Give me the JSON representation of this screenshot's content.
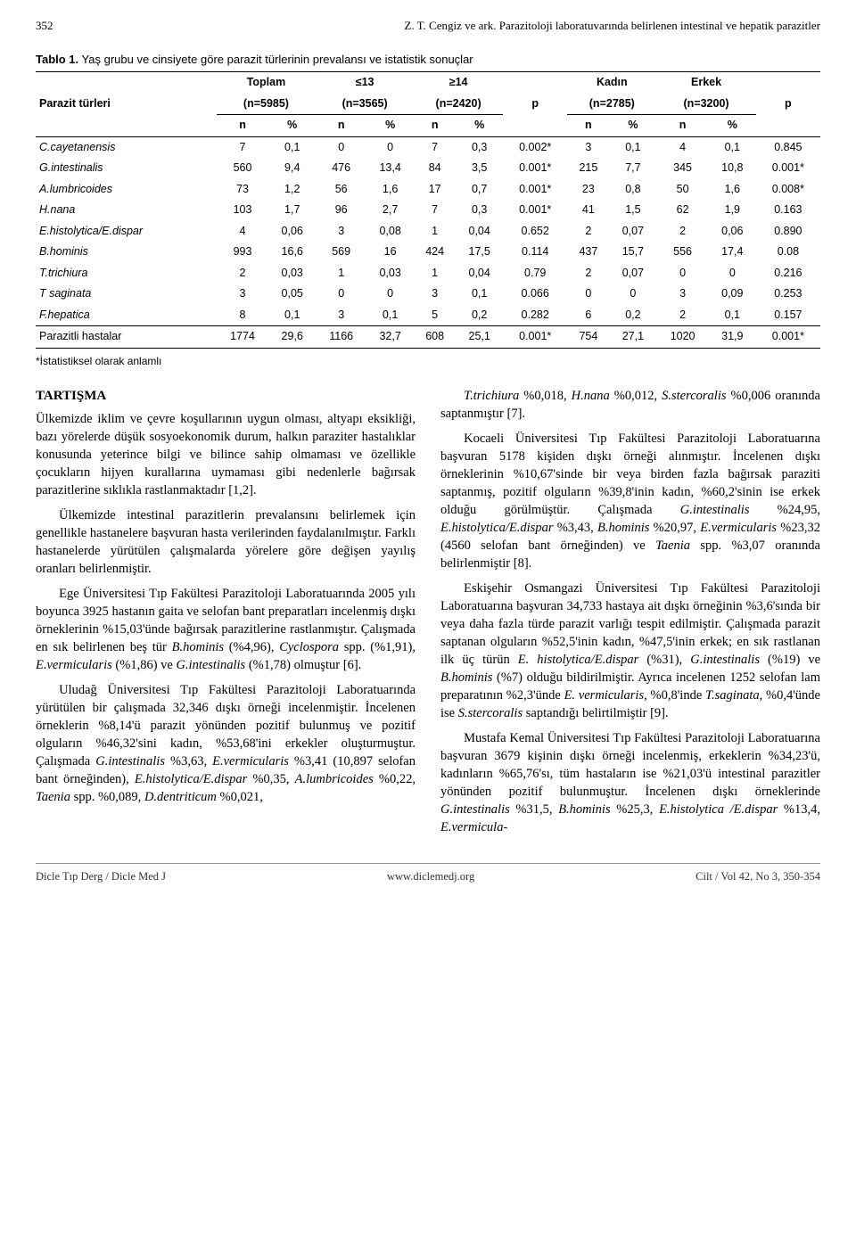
{
  "header": {
    "page_number": "352",
    "running_head": "Z. T. Cengiz ve ark. Parazitoloji laboratuvarında belirlenen intestinal ve hepatik parazitler"
  },
  "table": {
    "caption_label": "Tablo 1.",
    "caption_text": "Yaş grubu ve cinsiyete göre parazit türlerinin prevalansı ve istatistik sonuçlar",
    "header_row1": {
      "col0": "Parazit türleri",
      "groups": [
        {
          "label": "Toplam",
          "n": "(n=5985)"
        },
        {
          "label": "≤13",
          "n": "(n=3565)"
        },
        {
          "label": "≥14",
          "n": "(n=2420)"
        }
      ],
      "p1": "p",
      "groups2": [
        {
          "label": "Kadın",
          "n": "(n=2785)"
        },
        {
          "label": "Erkek",
          "n": "(n=3200)"
        }
      ],
      "p2": "p"
    },
    "header_row2": [
      "n",
      "%",
      "n",
      "%",
      "n",
      "%",
      "",
      "n",
      "%",
      "n",
      "%",
      ""
    ],
    "rows": [
      {
        "name": "C.cayetanensis",
        "italic": true,
        "vals": [
          "7",
          "0,1",
          "0",
          "0",
          "7",
          "0,3",
          "0.002*",
          "3",
          "0,1",
          "4",
          "0,1",
          "0.845"
        ]
      },
      {
        "name": "G.intestinalis",
        "italic": true,
        "vals": [
          "560",
          "9,4",
          "476",
          "13,4",
          "84",
          "3,5",
          "0.001*",
          "215",
          "7,7",
          "345",
          "10,8",
          "0.001*"
        ]
      },
      {
        "name": "A.lumbricoides",
        "italic": true,
        "vals": [
          "73",
          "1,2",
          "56",
          "1,6",
          "17",
          "0,7",
          "0.001*",
          "23",
          "0,8",
          "50",
          "1,6",
          "0.008*"
        ]
      },
      {
        "name": "H.nana",
        "italic": true,
        "vals": [
          "103",
          "1,7",
          "96",
          "2,7",
          "7",
          "0,3",
          "0.001*",
          "41",
          "1,5",
          "62",
          "1,9",
          "0.163"
        ]
      },
      {
        "name": "E.histolytica/E.dispar",
        "italic": true,
        "vals": [
          "4",
          "0,06",
          "3",
          "0,08",
          "1",
          "0,04",
          "0.652",
          "2",
          "0,07",
          "2",
          "0,06",
          "0.890"
        ]
      },
      {
        "name": "B.hominis",
        "italic": true,
        "vals": [
          "993",
          "16,6",
          "569",
          "16",
          "424",
          "17,5",
          "0.114",
          "437",
          "15,7",
          "556",
          "17,4",
          "0.08"
        ]
      },
      {
        "name": "T.trichiura",
        "italic": true,
        "vals": [
          "2",
          "0,03",
          "1",
          "0,03",
          "1",
          "0,04",
          "0.79",
          "2",
          "0,07",
          "0",
          "0",
          "0.216"
        ]
      },
      {
        "name": "T saginata",
        "italic": true,
        "vals": [
          "3",
          "0,05",
          "0",
          "0",
          "3",
          "0,1",
          "0.066",
          "0",
          "0",
          "3",
          "0,09",
          "0.253"
        ]
      },
      {
        "name": "F.hepatica",
        "italic": true,
        "vals": [
          "8",
          "0,1",
          "3",
          "0,1",
          "5",
          "0,2",
          "0.282",
          "6",
          "0,2",
          "2",
          "0,1",
          "0.157"
        ]
      },
      {
        "name": "Parazitli hastalar",
        "italic": false,
        "vals": [
          "1774",
          "29,6",
          "1166",
          "32,7",
          "608",
          "25,1",
          "0.001*",
          "754",
          "27,1",
          "1020",
          "31,9",
          "0.001*"
        ]
      }
    ],
    "footnote": "*İstatistiksel olarak anlamlı"
  },
  "discussion": {
    "heading": "TARTIŞMA",
    "paragraphs": [
      "Ülkemizde iklim ve çevre koşullarının uygun olması, altyapı eksikliği, bazı yörelerde düşük sosyoekonomik durum, halkın paraziter hastalıklar konusunda yeterince bilgi ve bilince sahip olmaması ve özellikle çocukların hijyen kurallarına uymaması gibi nedenlerle bağırsak parazitlerine sıklıkla rastlanmaktadır [1,2].",
      "Ülkemizde intestinal parazitlerin prevalansını belirlemek için genellikle hastanelere başvuran hasta verilerinden faydalanılmıştır. Farklı hastanelerde yürütülen çalışmalarda yörelere göre değişen yayılış oranları belirlenmiştir.",
      "Ege Üniversitesi Tıp Fakültesi Parazitoloji Laboratuarında 2005 yılı boyunca 3925 hastanın gaita ve selofan bant preparatları incelenmiş dışkı örneklerinin %15,03'ünde bağırsak parazitlerine rastlanmıştır. Çalışmada en sık belirlenen beş tür <em>B.hominis</em> (%4,96), <em>Cyclospora</em> spp. (%1,91), <em>E.vermicularis</em> (%1,86) ve <em>G.intestinalis</em> (%1,78) olmuştur [6].",
      "Uludağ Üniversitesi Tıp Fakültesi Parazitoloji Laboratuarında yürütülen bir çalışmada 32,346 dışkı örneği incelenmiştir. İncelenen örneklerin %8,14'ü parazit yönünden pozitif bulunmuş ve pozitif olguların %46,32'sini kadın, %53,68'ini erkekler oluşturmuştur. Çalışmada <em>G.intestinalis</em> %3,63, <em>E.vermicularis</em> %3,41 (10,897 selofan bant örneğinden), <em>E.histolytica/E.dispar</em> %0,35, <em>A.lumbricoides</em> %0,22, <em>Taenia</em> spp. %0,089, <em>D.dentriticum</em> %0,021,",
      "<em>T.trichiura</em> %0,018, <em>H.nana</em> %0,012, <em>S.stercoralis</em> %0,006 oranında saptanmıştır [7].",
      "Kocaeli Üniversitesi Tıp Fakültesi Parazitoloji Laboratuarına başvuran 5178 kişiden dışkı örneği alınmıştır. İncelenen dışkı örneklerinin %10,67'sinde bir veya birden fazla bağırsak paraziti saptanmış, pozitif olguların %39,8'inin kadın, %60,2'sinin ise erkek olduğu görülmüştür. Çalışmada <em>G.intestinalis</em> %24,95, <em>E.histolytica/E.dispar</em> %3,43, <em>B.hominis</em> %20,97, <em>E.vermicularis</em> %23,32 (4560 selofan bant örneğinden) ve <em>Taenia</em> spp. %3,07 oranında belirlenmiştir [8].",
      "Eskişehir Osmangazi Üniversitesi Tıp Fakültesi Parazitoloji Laboratuarına başvuran 34,733 hastaya ait dışkı örneğinin %3,6'sında bir veya daha fazla türde parazit varlığı tespit edilmiştir. Çalışmada parazit saptanan olguların %52,5'inin kadın, %47,5'inin erkek; en sık rastlanan ilk üç türün <em>E. histolytica/E.dispar</em> (%31), <em>G.intestinalis</em> (%19) ve <em>B.hominis</em> (%7) olduğu bildirilmiştir. Ayrıca incelenen 1252 selofan lam preparatının %2,3'ünde <em>E. vermicularis</em>, %0,8'inde <em>T.saginata</em>, %0,4'ünde ise <em>S.stercoralis</em> saptandığı belirtilmiştir [9].",
      "Mustafa Kemal Üniversitesi Tıp Fakültesi Parazitoloji Laboratuarına başvuran 3679 kişinin dışkı örneği incelenmiş, erkeklerin %34,23'ü, kadınların %65,76'sı, tüm hastaların ise %21,03'ü intestinal parazitler yönünden pozitif bulunmuştur. İncelenen dışkı örneklerinde <em>G.intestinalis</em> %31,5, <em>B.hominis</em> %25,3, <em>E.histolytica /E.dispar</em> %13,4, <em>E.vermicula-</em>"
    ]
  },
  "footer": {
    "left": "Dicle Tıp Derg / Dicle Med J",
    "center": "www.diclemedj.org",
    "right": "Cilt / Vol 42, No 3, 350-354"
  }
}
